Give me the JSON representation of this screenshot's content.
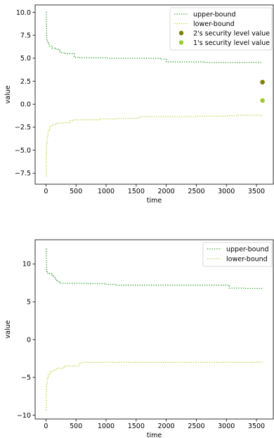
{
  "chart_data": [
    {
      "type": "line",
      "xlabel": "time",
      "ylabel": "value",
      "xlim": [
        -180,
        3780
      ],
      "ylim": [
        -8.7,
        10.8
      ],
      "xticks": [
        0,
        500,
        1000,
        1500,
        2000,
        2500,
        3000,
        3500
      ],
      "yticks": [
        -7.5,
        -5.0,
        -2.5,
        0.0,
        2.5,
        5.0,
        7.5,
        10.0
      ],
      "ytick_labels": [
        "−7.5",
        "−5.0",
        "−2.5",
        "0.0",
        "2.5",
        "5.0",
        "7.5",
        "10.0"
      ],
      "grid": false,
      "legend_position": "top-right",
      "series": [
        {
          "name": "upper-bound",
          "style": "dotted",
          "color": "#2ca02c",
          "points": [
            [
              0,
              10.0
            ],
            [
              5,
              8.5
            ],
            [
              10,
              7.5
            ],
            [
              15,
              7.0
            ],
            [
              25,
              6.7
            ],
            [
              40,
              6.5
            ],
            [
              60,
              6.3
            ],
            [
              100,
              6.1
            ],
            [
              150,
              6.0
            ],
            [
              200,
              5.9
            ],
            [
              230,
              5.7
            ],
            [
              260,
              5.6
            ],
            [
              300,
              5.5
            ],
            [
              350,
              5.5
            ],
            [
              420,
              5.5
            ],
            [
              470,
              5.1
            ],
            [
              550,
              5.05
            ],
            [
              900,
              5.05
            ],
            [
              1000,
              5.0
            ],
            [
              1500,
              5.0
            ],
            [
              1700,
              5.0
            ],
            [
              1900,
              4.9
            ],
            [
              2000,
              4.6
            ],
            [
              2300,
              4.6
            ],
            [
              2600,
              4.6
            ],
            [
              2620,
              4.55
            ],
            [
              3600,
              4.55
            ]
          ]
        },
        {
          "name": "lower-bound",
          "style": "dotted",
          "color": "#b5d43a",
          "points": [
            [
              0,
              -7.8
            ],
            [
              5,
              -5.5
            ],
            [
              10,
              -4.3
            ],
            [
              20,
              -3.5
            ],
            [
              35,
              -2.8
            ],
            [
              60,
              -2.4
            ],
            [
              100,
              -2.2
            ],
            [
              150,
              -2.1
            ],
            [
              200,
              -2.05
            ],
            [
              300,
              -2.0
            ],
            [
              400,
              -1.8
            ],
            [
              450,
              -1.7
            ],
            [
              700,
              -1.7
            ],
            [
              900,
              -1.6
            ],
            [
              1100,
              -1.6
            ],
            [
              1200,
              -1.55
            ],
            [
              1500,
              -1.5
            ],
            [
              1550,
              -1.35
            ],
            [
              2000,
              -1.35
            ],
            [
              2500,
              -1.3
            ],
            [
              3000,
              -1.25
            ],
            [
              3200,
              -1.2
            ],
            [
              3600,
              -1.2
            ]
          ]
        }
      ],
      "scatter": [
        {
          "name": "2's security level value",
          "x": 3600,
          "y": 2.4,
          "color": "#808000"
        },
        {
          "name": "1's security level value",
          "x": 3600,
          "y": 0.4,
          "color": "#9acd32"
        }
      ]
    },
    {
      "type": "line",
      "xlabel": "time",
      "ylabel": "value",
      "xlim": [
        -180,
        3780
      ],
      "ylim": [
        -10.5,
        13.2
      ],
      "xticks": [
        0,
        500,
        1000,
        1500,
        2000,
        2500,
        3000,
        3500
      ],
      "yticks": [
        -10,
        -5,
        0,
        5,
        10
      ],
      "ytick_labels": [
        "−10",
        "−5",
        "0",
        "5",
        "10"
      ],
      "grid": false,
      "legend_position": "top-right",
      "series": [
        {
          "name": "upper-bound",
          "style": "dotted",
          "color": "#2ca02c",
          "points": [
            [
              0,
              12.0
            ],
            [
              5,
              10.2
            ],
            [
              10,
              9.0
            ],
            [
              20,
              8.8
            ],
            [
              60,
              8.7
            ],
            [
              100,
              8.5
            ],
            [
              130,
              8.3
            ],
            [
              150,
              8.0
            ],
            [
              180,
              7.8
            ],
            [
              200,
              7.6
            ],
            [
              230,
              7.45
            ],
            [
              400,
              7.45
            ],
            [
              700,
              7.4
            ],
            [
              1000,
              7.3
            ],
            [
              1150,
              7.2
            ],
            [
              1500,
              7.2
            ],
            [
              2000,
              7.2
            ],
            [
              2500,
              7.2
            ],
            [
              3000,
              7.2
            ],
            [
              3050,
              6.8
            ],
            [
              3300,
              6.75
            ],
            [
              3600,
              6.75
            ]
          ]
        },
        {
          "name": "lower-bound",
          "style": "dotted",
          "color": "#b5d43a",
          "points": [
            [
              0,
              -9.3
            ],
            [
              5,
              -7.0
            ],
            [
              10,
              -5.8
            ],
            [
              20,
              -5.0
            ],
            [
              40,
              -4.6
            ],
            [
              70,
              -4.3
            ],
            [
              100,
              -4.1
            ],
            [
              150,
              -3.9
            ],
            [
              200,
              -3.8
            ],
            [
              300,
              -3.5
            ],
            [
              450,
              -3.5
            ],
            [
              550,
              -3.2
            ],
            [
              580,
              -3.0
            ],
            [
              1000,
              -3.0
            ],
            [
              1500,
              -3.0
            ],
            [
              2000,
              -3.0
            ],
            [
              2500,
              -3.0
            ],
            [
              3000,
              -3.0
            ],
            [
              3600,
              -2.9
            ]
          ]
        }
      ],
      "scatter": []
    }
  ]
}
